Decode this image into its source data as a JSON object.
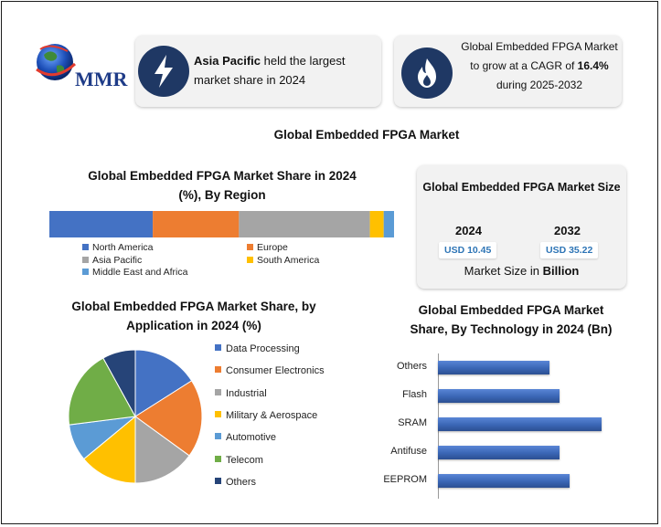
{
  "logo": {
    "brand": "MMR"
  },
  "highlights": [
    {
      "icon": "lightning-icon",
      "bold": "Asia Pacific",
      "text_line1": " held the largest",
      "text_line2": "market share in 2024"
    },
    {
      "icon": "flame-icon",
      "line1": "Global Embedded FPGA Market",
      "line2_pre": "to grow at a CAGR of ",
      "line2_bold": "16.4%",
      "line3": "during 2025-2032"
    }
  ],
  "main_title": "Global Embedded FPGA Market",
  "market_size": {
    "title": "Global Embedded FPGA Market Size",
    "years": [
      {
        "year": "2024",
        "value": "USD 10.45"
      },
      {
        "year": "2032",
        "value": "USD 35.22"
      }
    ],
    "footer_pre": "Market Size in ",
    "footer_bold": "Billion"
  },
  "colors": {
    "navy": "#1f3864",
    "blue": "#4472c4",
    "orange": "#ed7d31",
    "gray": "#a5a5a5",
    "yellow": "#ffc000",
    "lightblue": "#5b9bd5",
    "green": "#70ad47",
    "darkblue": "#264478"
  },
  "chart_data": [
    {
      "type": "bar",
      "orientation": "stacked-horizontal",
      "title_line1": "Global Embedded FPGA Market Share in 2024",
      "title_line2": "(%), By Region",
      "series": [
        {
          "name": "North America",
          "value": 30,
          "color": "#4472c4"
        },
        {
          "name": "Europe",
          "value": 25,
          "color": "#ed7d31"
        },
        {
          "name": "Asia Pacific",
          "value": 38,
          "color": "#a5a5a5"
        },
        {
          "name": "South America",
          "value": 4,
          "color": "#ffc000"
        },
        {
          "name": "Middle East and Africa",
          "value": 3,
          "color": "#5b9bd5"
        }
      ],
      "legend_position": "bottom"
    },
    {
      "type": "pie",
      "title_line1": "Global Embedded FPGA Market Share, by",
      "title_line2": "Application in 2024 (%)",
      "categories": [
        "Data Processing",
        "Consumer Electronics",
        "Industrial",
        "Military & Aerospace",
        "Automotive",
        "Telecom",
        "Others"
      ],
      "values": [
        16,
        19,
        15,
        14,
        9,
        19,
        8
      ],
      "colors": [
        "#4472c4",
        "#ed7d31",
        "#a5a5a5",
        "#ffc000",
        "#5b9bd5",
        "#70ad47",
        "#264478"
      ],
      "legend_position": "right"
    },
    {
      "type": "bar",
      "orientation": "horizontal",
      "title_line1": "Global Embedded FPGA Market",
      "title_line2": "Share, By Technology in 2024 (Bn)",
      "categories": [
        "Others",
        "Flash",
        "SRAM",
        "Antifuse",
        "EEPROM"
      ],
      "values": [
        1.6,
        1.75,
        2.35,
        1.75,
        1.9
      ],
      "xlim": [
        0,
        3.0
      ],
      "grid": false
    }
  ]
}
